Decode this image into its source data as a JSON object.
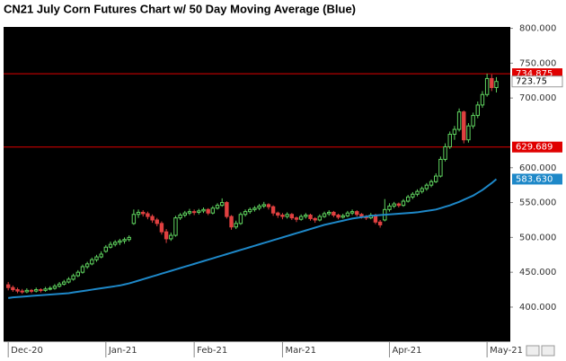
{
  "chart_data": {
    "type": "candlestick",
    "title": "CN21 July Corn Futures Chart w/ 50 Day Moving Average (Blue)",
    "ohlc": [
      [
        432,
        436,
        424,
        428
      ],
      [
        428,
        431,
        422,
        425
      ],
      [
        425,
        428,
        420,
        423
      ],
      [
        423,
        426,
        419,
        422
      ],
      [
        422,
        427,
        420,
        424
      ],
      [
        424,
        426,
        420,
        423
      ],
      [
        423,
        428,
        421,
        425
      ],
      [
        425,
        427,
        421,
        424
      ],
      [
        424,
        429,
        422,
        426
      ],
      [
        426,
        430,
        424,
        427
      ],
      [
        427,
        433,
        425,
        430
      ],
      [
        430,
        436,
        428,
        433
      ],
      [
        433,
        439,
        431,
        436
      ],
      [
        436,
        443,
        434,
        440
      ],
      [
        440,
        448,
        438,
        445
      ],
      [
        445,
        453,
        443,
        450
      ],
      [
        450,
        461,
        448,
        458
      ],
      [
        458,
        465,
        455,
        462
      ],
      [
        462,
        471,
        460,
        468
      ],
      [
        468,
        475,
        465,
        472
      ],
      [
        472,
        480,
        470,
        476
      ],
      [
        480,
        489,
        478,
        486
      ],
      [
        486,
        494,
        484,
        490
      ],
      [
        490,
        496,
        487,
        493
      ],
      [
        493,
        498,
        489,
        495
      ],
      [
        495,
        500,
        491,
        497
      ],
      [
        497,
        503,
        494,
        500
      ],
      [
        520,
        540,
        518,
        533
      ],
      [
        533,
        540,
        528,
        536
      ],
      [
        536,
        539,
        530,
        534
      ],
      [
        534,
        537,
        526,
        530
      ],
      [
        530,
        533,
        521,
        525
      ],
      [
        525,
        528,
        516,
        520
      ],
      [
        520,
        523,
        504,
        508
      ],
      [
        508,
        512,
        492,
        498
      ],
      [
        498,
        507,
        495,
        503
      ],
      [
        503,
        531,
        501,
        528
      ],
      [
        528,
        535,
        525,
        532
      ],
      [
        532,
        538,
        529,
        535
      ],
      [
        535,
        541,
        532,
        537
      ],
      [
        537,
        540,
        532,
        536
      ],
      [
        536,
        541,
        533,
        538
      ],
      [
        538,
        543,
        535,
        540
      ],
      [
        540,
        542,
        532,
        535
      ],
      [
        535,
        545,
        533,
        542
      ],
      [
        542,
        549,
        540,
        546
      ],
      [
        546,
        556,
        544,
        550
      ],
      [
        550,
        552,
        527,
        530
      ],
      [
        530,
        532,
        511,
        515
      ],
      [
        515,
        524,
        512,
        520
      ],
      [
        520,
        536,
        518,
        533
      ],
      [
        533,
        540,
        530,
        537
      ],
      [
        537,
        543,
        534,
        540
      ],
      [
        540,
        545,
        537,
        542
      ],
      [
        542,
        548,
        539,
        545
      ],
      [
        545,
        551,
        542,
        547
      ],
      [
        547,
        549,
        540,
        544
      ],
      [
        544,
        546,
        531,
        535
      ],
      [
        535,
        537,
        528,
        532
      ],
      [
        532,
        535,
        526,
        530
      ],
      [
        530,
        536,
        527,
        533
      ],
      [
        533,
        535,
        525,
        528
      ],
      [
        528,
        530,
        522,
        526
      ],
      [
        526,
        533,
        524,
        530
      ],
      [
        530,
        535,
        527,
        532
      ],
      [
        532,
        534,
        524,
        527
      ],
      [
        527,
        529,
        521,
        525
      ],
      [
        525,
        533,
        523,
        530
      ],
      [
        530,
        537,
        528,
        534
      ],
      [
        534,
        539,
        531,
        536
      ],
      [
        536,
        538,
        529,
        532
      ],
      [
        532,
        534,
        526,
        529
      ],
      [
        529,
        534,
        527,
        531
      ],
      [
        531,
        538,
        529,
        535
      ],
      [
        535,
        540,
        532,
        537
      ],
      [
        537,
        539,
        530,
        533
      ],
      [
        533,
        535,
        527,
        530
      ],
      [
        530,
        532,
        525,
        528
      ],
      [
        528,
        535,
        526,
        532
      ],
      [
        532,
        534,
        519,
        522
      ],
      [
        522,
        525,
        514,
        518
      ],
      [
        525,
        555,
        523,
        540
      ],
      [
        540,
        549,
        537,
        545
      ],
      [
        545,
        551,
        542,
        548
      ],
      [
        548,
        550,
        543,
        546
      ],
      [
        546,
        555,
        544,
        552
      ],
      [
        552,
        561,
        550,
        558
      ],
      [
        558,
        565,
        555,
        562
      ],
      [
        562,
        569,
        559,
        566
      ],
      [
        566,
        573,
        563,
        570
      ],
      [
        570,
        578,
        567,
        575
      ],
      [
        575,
        583,
        572,
        580
      ],
      [
        580,
        592,
        578,
        588
      ],
      [
        588,
        616,
        586,
        612
      ],
      [
        612,
        635,
        609,
        630
      ],
      [
        630,
        652,
        627,
        648
      ],
      [
        648,
        660,
        640,
        655
      ],
      [
        655,
        685,
        652,
        680
      ],
      [
        680,
        682,
        635,
        640
      ],
      [
        640,
        664,
        636,
        660
      ],
      [
        660,
        679,
        656,
        675
      ],
      [
        675,
        695,
        671,
        690
      ],
      [
        690,
        710,
        686,
        705
      ],
      [
        705,
        735,
        702,
        728
      ],
      [
        728,
        734,
        710,
        715
      ],
      [
        715,
        730,
        708,
        723.75
      ]
    ],
    "up_color": "#5fd35f",
    "down_color": "#e04040",
    "ma": [
      413,
      414,
      414.5,
      415,
      415.5,
      416,
      416.5,
      417,
      417.5,
      418,
      418.5,
      419,
      419.5,
      420,
      421,
      422,
      423,
      424,
      425,
      426,
      427,
      428,
      429,
      430,
      431,
      432.5,
      434,
      436,
      438,
      440,
      442,
      444,
      446,
      448,
      450,
      452,
      454,
      456,
      458,
      460,
      462,
      464,
      466,
      468,
      470,
      472,
      474,
      476,
      478,
      480,
      482,
      484,
      486,
      488,
      490,
      492,
      494,
      496,
      498,
      500,
      502,
      504,
      506,
      508,
      510,
      512,
      514,
      516,
      518,
      519.5,
      521,
      522.5,
      524,
      525.5,
      527,
      528,
      529,
      530,
      531,
      531.5,
      532,
      532.5,
      533,
      533.5,
      534,
      534.5,
      535,
      535.5,
      536,
      537,
      538,
      539,
      540,
      542,
      544,
      546,
      548.5,
      551,
      554,
      557,
      560,
      564,
      568,
      573,
      578,
      583.63
    ],
    "ma_color": "#1e88c8",
    "ma_value_label": "583.630",
    "levels": [
      734.875,
      629.689
    ],
    "level_color": "#e00000",
    "xlim": [
      -1,
      108
    ],
    "xticks": [
      {
        "value": 0,
        "label": "Dec-20"
      },
      {
        "value": 21,
        "label": "Jan-21"
      },
      {
        "value": 40,
        "label": "Feb-21"
      },
      {
        "value": 59,
        "label": "Mar-21"
      },
      {
        "value": 82,
        "label": "Apr-21"
      },
      {
        "value": 103,
        "label": "May-21"
      }
    ],
    "ylim": [
      351,
      802
    ],
    "yticks": [
      {
        "value": 400,
        "label": "400.000"
      },
      {
        "value": 450,
        "label": "450.000"
      },
      {
        "value": 500,
        "label": "500.000"
      },
      {
        "value": 550,
        "label": "550.000"
      },
      {
        "value": 600,
        "label": "600.000"
      },
      {
        "value": 700,
        "label": "700.000"
      },
      {
        "value": 750,
        "label": "750.000"
      },
      {
        "value": 800,
        "label": "800.000"
      }
    ]
  }
}
